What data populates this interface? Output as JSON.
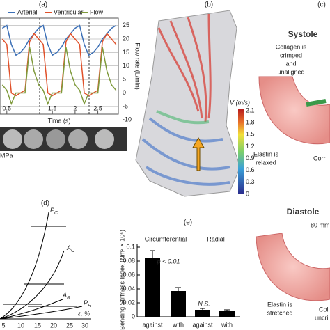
{
  "chart_data": [
    {
      "type": "line",
      "label": "(a)",
      "x": [
        0.4,
        0.5,
        0.6,
        0.7,
        0.8,
        0.9,
        1.0,
        1.1,
        1.2,
        1.3,
        1.4,
        1.5,
        1.6,
        1.7,
        1.8,
        1.9,
        2.0,
        2.1,
        2.2,
        2.3,
        2.4,
        2.5,
        2.6,
        2.7,
        2.8,
        2.9
      ],
      "series": [
        {
          "name": "Arterial",
          "color": "#3b6fb6",
          "values": [
            24,
            25,
            18,
            14,
            15,
            17,
            20,
            22,
            24,
            25,
            18,
            14,
            15,
            17,
            20,
            22,
            24,
            25,
            18,
            14,
            15,
            17,
            20,
            22,
            24,
            25
          ]
        },
        {
          "name": "Ventricular",
          "color": "#e0512a",
          "values": [
            20,
            18,
            0,
            -1,
            0,
            1,
            19,
            22,
            20,
            18,
            0,
            -1,
            0,
            1,
            19,
            22,
            20,
            18,
            0,
            -1,
            0,
            1,
            19,
            22,
            20,
            18
          ]
        },
        {
          "name": "Flow",
          "color": "#7f9a3c",
          "values": [
            3,
            1,
            -4,
            0,
            0,
            0,
            17,
            8,
            3,
            1,
            -4,
            0,
            0,
            0,
            17,
            8,
            3,
            1,
            -4,
            0,
            0,
            0,
            17,
            8,
            3,
            1
          ]
        }
      ],
      "xlim": [
        0.35,
        2.95
      ],
      "xticks": [
        0.5,
        1.5,
        2,
        2.5
      ],
      "xlabel": "Time (s)",
      "ylim": [
        -12,
        28
      ],
      "yticks": [
        -10,
        -5,
        0,
        5,
        10,
        15,
        20,
        25
      ],
      "ylabel": "Flow rate (L/min)",
      "grid": true
    },
    {
      "type": "bar",
      "label": "(e)",
      "categories": [
        "against",
        "with",
        "against",
        "with"
      ],
      "values": [
        0.084,
        0.037,
        0.01,
        0.008
      ],
      "errors": [
        0.011,
        0.005,
        0.002,
        0.002
      ],
      "color": "#000000",
      "ylim": [
        0,
        0.105
      ],
      "yticks": [
        0,
        0.02,
        0.04,
        0.06,
        0.08,
        0.1
      ],
      "ylabel": "Bending Stiffness Index (Nm² × 10⁶)",
      "annotations": [
        "Circumferential",
        "Radial",
        "p < 0.01",
        "N.S."
      ]
    }
  ],
  "panel_a": {
    "scale_unit": "MPa"
  },
  "panel_b": {
    "label": "(b)",
    "colorbar_title": "V (m/s)",
    "colorbar_labels": [
      "2.1",
      "1.8",
      "1.5",
      "1.2",
      "0.9",
      "0.6",
      "0.3",
      "0"
    ]
  },
  "panel_c": {
    "label": "(c)",
    "systole": "Systole",
    "collagen": [
      "Collagen is",
      "crimped",
      "and",
      "unaligned"
    ],
    "elastin_relaxed": [
      "Elastin is",
      "relaxed"
    ],
    "corr": "Corr",
    "diastole": "Diastole",
    "pressure": "80 mm",
    "elastin_stretched": [
      "Elastin is",
      "stretched"
    ],
    "col": [
      "Col",
      "uncri"
    ]
  },
  "panel_d": {
    "label": "(d)",
    "curves": [
      {
        "main": "P",
        "sub": "C"
      },
      {
        "main": "A",
        "sub": "C"
      },
      {
        "main": "A",
        "sub": "R"
      },
      {
        "main": "P",
        "sub": "R"
      }
    ],
    "xlabel": "ε, %",
    "xticks": [
      "5",
      "10",
      "15",
      "20",
      "25",
      "30"
    ]
  }
}
